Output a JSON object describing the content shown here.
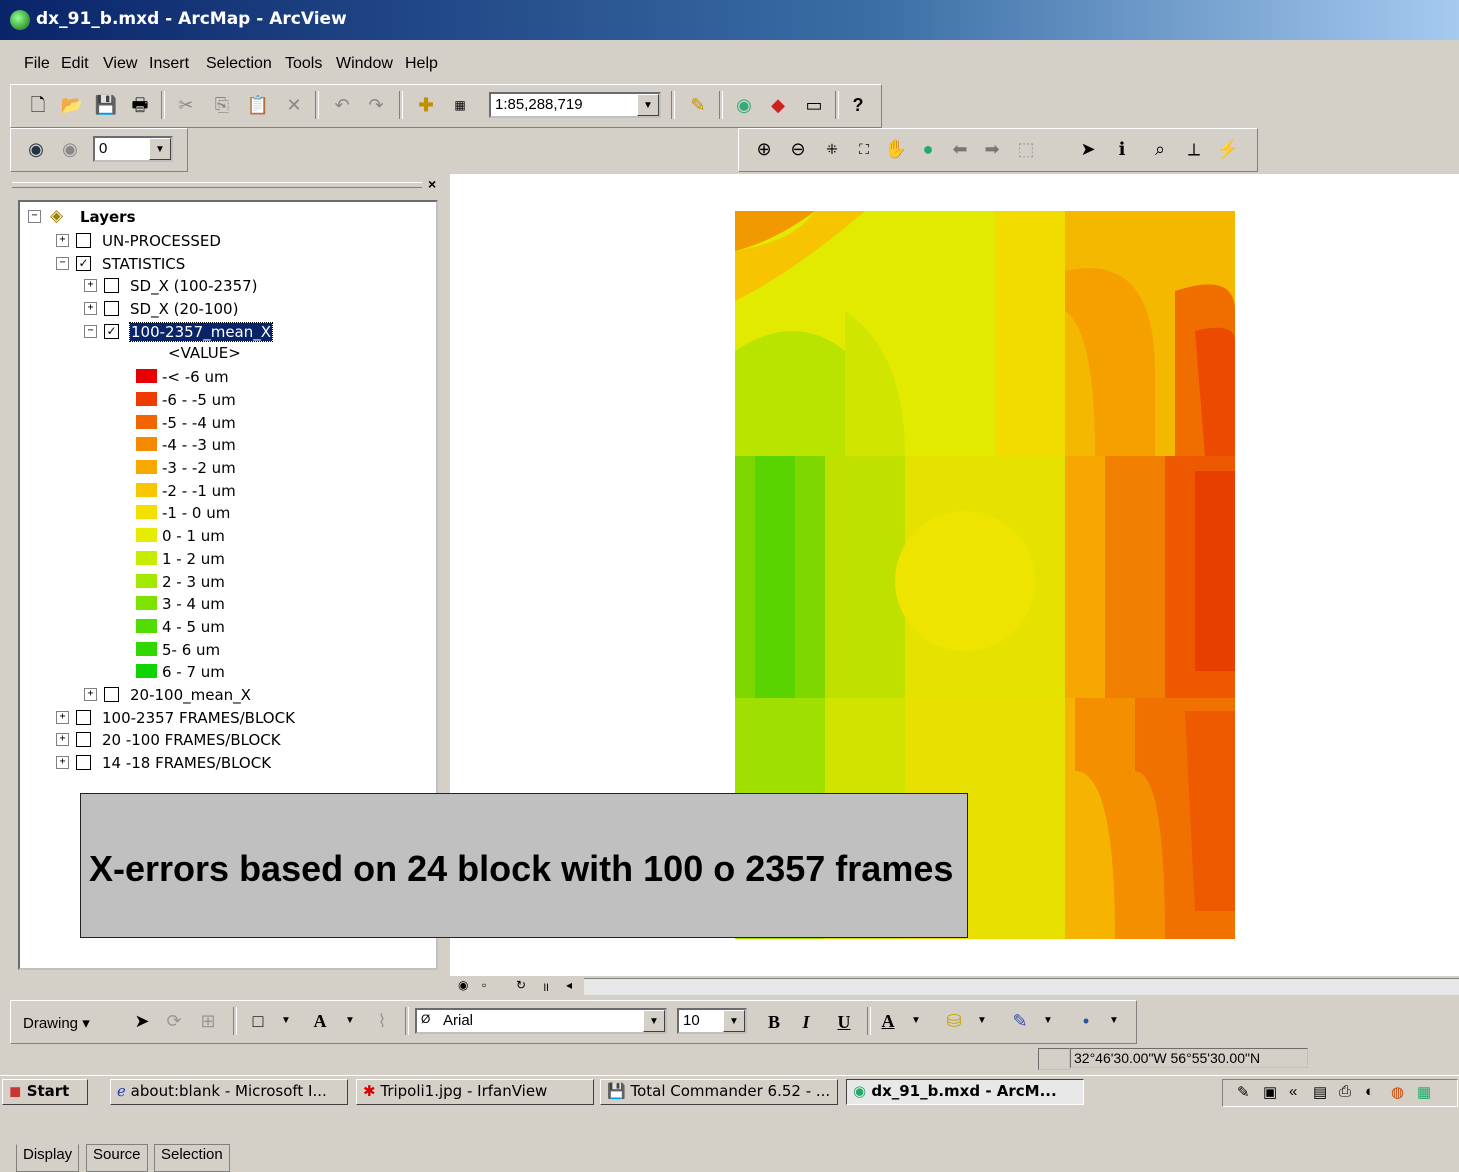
{
  "window": {
    "title": "dx_91_b.mxd - ArcMap - ArcView"
  },
  "menu": [
    "File",
    "Edit",
    "View",
    "Insert",
    "Selection",
    "Tools",
    "Window",
    "Help"
  ],
  "toolbar": {
    "scale": "1:85,288,719",
    "icons": [
      "new-icon",
      "open-icon",
      "save-icon",
      "print-icon",
      "cut-icon",
      "copy-icon",
      "paste-icon",
      "delete-icon",
      "undo-icon",
      "redo-icon",
      "add-data-icon",
      "editor-icon",
      "help-icon"
    ]
  },
  "effects": {
    "transparency": "0"
  },
  "tools": {
    "icons": [
      "zoom-in-icon",
      "zoom-out-icon",
      "fixed-zoom-in-icon",
      "fixed-zoom-out-icon",
      "pan-icon",
      "full-extent-icon",
      "back-icon",
      "forward-icon",
      "select-features-icon",
      "select-elements-icon",
      "identify-icon",
      "find-icon",
      "measure-icon",
      "hyperlink-icon"
    ]
  },
  "toc": {
    "root": "Layers",
    "groups": [
      {
        "label": "UN-PROCESSED",
        "checked": false,
        "expanded": false
      },
      {
        "label": "STATISTICS",
        "checked": true,
        "expanded": true
      }
    ],
    "sublayers": [
      {
        "label": "SD_X (100-2357)",
        "checked": false
      },
      {
        "label": "SD_X (20-100)",
        "checked": false
      },
      {
        "label": "100-2357_mean_X",
        "checked": true,
        "selected": true
      }
    ],
    "value_header": "<VALUE>",
    "legend": [
      {
        "label": "-< -6 um",
        "color": "#e80000"
      },
      {
        "label": "-6 - -5 um",
        "color": "#ef3a00"
      },
      {
        "label": "-5 - -4 um",
        "color": "#f26400"
      },
      {
        "label": "-4 - -3 um",
        "color": "#f58a00"
      },
      {
        "label": "-3 - -2 um",
        "color": "#f8a900"
      },
      {
        "label": "-2 - -1 um",
        "color": "#f8c600"
      },
      {
        "label": "-1 - 0 um",
        "color": "#f2e000"
      },
      {
        "label": "0 - 1 um",
        "color": "#e6ec00"
      },
      {
        "label": "1 - 2 um",
        "color": "#c6ec00"
      },
      {
        "label": "2 - 3 um",
        "color": "#a2e800"
      },
      {
        "label": "3 - 4 um",
        "color": "#7ee200"
      },
      {
        "label": "4 - 5 um",
        "color": "#52dc00"
      },
      {
        "label": "5- 6 um",
        "color": "#30d800"
      },
      {
        "label": "6 - 7 um",
        "color": "#10d400"
      }
    ],
    "after": [
      {
        "label": "20-100_mean_X",
        "checked": false,
        "indent": 2
      },
      {
        "label": "100-2357 FRAMES/BLOCK",
        "checked": false,
        "indent": 1
      },
      {
        "label": "20 -100 FRAMES/BLOCK",
        "checked": false,
        "indent": 1
      },
      {
        "label": "14 -18  FRAMES/BLOCK",
        "checked": false,
        "indent": 1
      }
    ],
    "tabs": [
      "Display",
      "Source",
      "Selection"
    ]
  },
  "caption": "X-errors based on 24 block with 100 o 2357 frames",
  "drawing": {
    "label": "Drawing",
    "font": "Arial",
    "size": "10",
    "bold": "B",
    "italic": "I",
    "underline": "U"
  },
  "status": {
    "coords": "32°46'30.00\"W  56°55'30.00\"N"
  },
  "taskbar": {
    "start": "Start",
    "tasks": [
      "about:blank - Microsoft I...",
      "Tripoli1.jpg - IrfanView",
      "Total Commander 6.52 - ...",
      "dx_91_b.mxd - ArcM..."
    ]
  }
}
